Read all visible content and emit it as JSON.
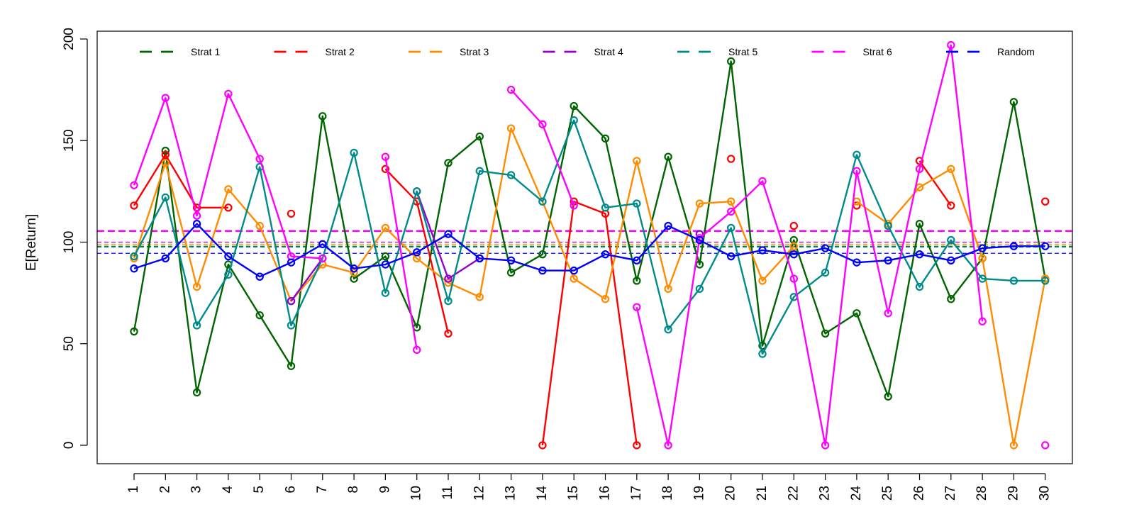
{
  "chart_data": {
    "type": "line",
    "title": "",
    "xlabel": "",
    "ylabel": "E[Return]",
    "x": [
      1,
      2,
      3,
      4,
      5,
      6,
      7,
      8,
      9,
      10,
      11,
      12,
      13,
      14,
      15,
      16,
      17,
      18,
      19,
      20,
      21,
      22,
      23,
      24,
      25,
      26,
      27,
      28,
      29,
      30
    ],
    "x_tick_labels": [
      "1",
      "2",
      "3",
      "4",
      "5",
      "6",
      "7",
      "8",
      "9",
      "10",
      "11",
      "12",
      "13",
      "14",
      "15",
      "16",
      "17",
      "18",
      "19",
      "20",
      "21",
      "22",
      "23",
      "24",
      "25",
      "26",
      "27",
      "28",
      "29",
      "30"
    ],
    "ylim": [
      0,
      200
    ],
    "y_ticks": [
      0,
      50,
      100,
      150,
      200
    ],
    "legend_position": "top",
    "series": [
      {
        "name": "Strat 1",
        "color": "#006400",
        "mean": 98,
        "values": [
          56,
          145,
          26,
          89,
          64,
          39,
          162,
          82,
          93,
          58,
          139,
          152,
          85,
          94,
          167,
          151,
          81,
          142,
          89,
          189,
          49,
          101,
          55,
          65,
          24,
          109,
          72,
          92,
          169,
          82
        ]
      },
      {
        "name": "Strat 2",
        "color": "#ff0000",
        "mean": 105.5,
        "values": [
          118,
          143,
          117,
          117,
          null,
          114,
          null,
          null,
          136,
          120,
          55,
          null,
          null,
          0,
          120,
          114,
          0,
          null,
          null,
          141,
          null,
          108,
          null,
          118,
          null,
          140,
          118,
          null,
          null,
          120
        ]
      },
      {
        "name": "Strat 3",
        "color": "#ff8c00",
        "mean": 99,
        "values": [
          92,
          139,
          78,
          126,
          108,
          71,
          89,
          85,
          107,
          92,
          80,
          73,
          156,
          120,
          82,
          72,
          140,
          77,
          119,
          120,
          81,
          98,
          null,
          120,
          109,
          127,
          136,
          92,
          0,
          82
        ]
      },
      {
        "name": "Strat 4",
        "color": "#9400d3",
        "mean": 100,
        "values": [
          null,
          null,
          null,
          null,
          null,
          71,
          92,
          null,
          null,
          125,
          82,
          92,
          null,
          null,
          null,
          null,
          null,
          null,
          104,
          null,
          null,
          null,
          null,
          null,
          null,
          null,
          null,
          null,
          null,
          null
        ]
      },
      {
        "name": "Strat 5",
        "color": "#008b8b",
        "mean": 97.5,
        "values": [
          93,
          122,
          59,
          84,
          137,
          59,
          92,
          144,
          75,
          125,
          71,
          135,
          133,
          120,
          160,
          117,
          119,
          57,
          77,
          107,
          45,
          73,
          85,
          143,
          108,
          78,
          101,
          82,
          81,
          81
        ]
      },
      {
        "name": "Strat 6",
        "color": "#ff00ff",
        "mean": 105.5,
        "values": [
          128,
          171,
          113,
          173,
          141,
          93,
          92,
          null,
          142,
          47,
          null,
          null,
          175,
          158,
          118,
          null,
          68,
          0,
          102,
          115,
          130,
          82,
          0,
          135,
          65,
          136,
          197,
          61,
          null,
          0
        ]
      },
      {
        "name": "Random",
        "color": "#0000ff",
        "mean": 94.5,
        "values": [
          87,
          92,
          109,
          93,
          83,
          90,
          99,
          87,
          89,
          95,
          104,
          92,
          91,
          86,
          86,
          94,
          91,
          108,
          101,
          93,
          96,
          94,
          97,
          90,
          91,
          94,
          91,
          97,
          98,
          98
        ]
      }
    ]
  }
}
